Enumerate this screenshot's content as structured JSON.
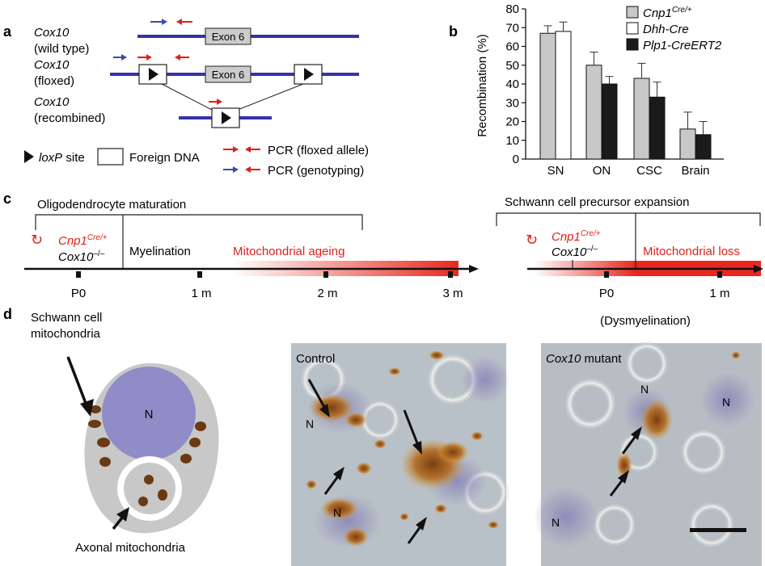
{
  "panel_a": {
    "letter": "a",
    "gene": "Cox10",
    "wt": "(wild type)",
    "floxed": "(floxed)",
    "recombined": "(recombined)",
    "exon": "Exon 6",
    "legend": {
      "loxp_italic": "loxP",
      "loxp_rest": " site",
      "foreign": "Foreign DNA",
      "pcr_floxed": "PCR (floxed allele)",
      "pcr_genotyping": "PCR (genotyping)"
    },
    "colors": {
      "dna": "#3333aa",
      "primer_red": "#e0201b",
      "primer_blue": "#3a4bb0",
      "exon_fill": "#cccccc"
    }
  },
  "panel_b": {
    "letter": "b",
    "chart_data": {
      "type": "bar",
      "ylabel": "Recombination (%)",
      "ylim": [
        0,
        80
      ],
      "yticks": [
        "0",
        "10",
        "20",
        "30",
        "40",
        "50",
        "60",
        "70",
        "80"
      ],
      "categories": [
        "SN",
        "ON",
        "CSC",
        "Brain"
      ],
      "series": [
        {
          "name_base": "Cnp1",
          "name_sup": "Cre/+",
          "color": "#c8c8c8",
          "values": [
            67,
            50,
            43,
            16
          ],
          "errors": [
            4,
            7,
            8,
            9
          ]
        },
        {
          "name_base": "Dhh-Cre",
          "name_sup": "",
          "color": "#ffffff",
          "values": [
            68,
            null,
            null,
            null
          ],
          "errors": [
            5,
            null,
            null,
            null
          ]
        },
        {
          "name_base": "Plp1-CreERT2",
          "name_sup": "",
          "color": "#1a1a1a",
          "values": [
            null,
            40,
            33,
            13
          ],
          "errors": [
            null,
            4,
            8,
            7
          ]
        }
      ]
    }
  },
  "panel_c": {
    "letter": "c",
    "left": {
      "bracket_label": "Oligodendrocyte maturation",
      "cnp": "Cnp1",
      "cnp_sup": "Cre/+",
      "cox": "Cox10",
      "cox_sup": "–/–",
      "myelination": "Myelination",
      "ageing": "Mitochondrial ageing",
      "ticks": [
        "P0",
        "1 m",
        "2 m",
        "3 m"
      ]
    },
    "right": {
      "bracket_label": "Schwann cell precursor expansion",
      "cnp": "Cnp1",
      "cnp_sup": "Cre/+",
      "cox": "Cox10",
      "cox_sup": "–/–",
      "loss": "Mitochondrial loss",
      "ticks": [
        "P0",
        "1 m"
      ],
      "dysmyelination": "(Dysmyelination)"
    }
  },
  "panel_d": {
    "letter": "d",
    "schwann_label_1": "Schwann cell",
    "schwann_label_2": "mitochondria",
    "nucleus": "N",
    "axonal_label": "Axonal mitochondria",
    "control_label": "Control",
    "mutant_gene": "Cox10",
    "mutant_rest": " mutant",
    "n_label": "N"
  }
}
